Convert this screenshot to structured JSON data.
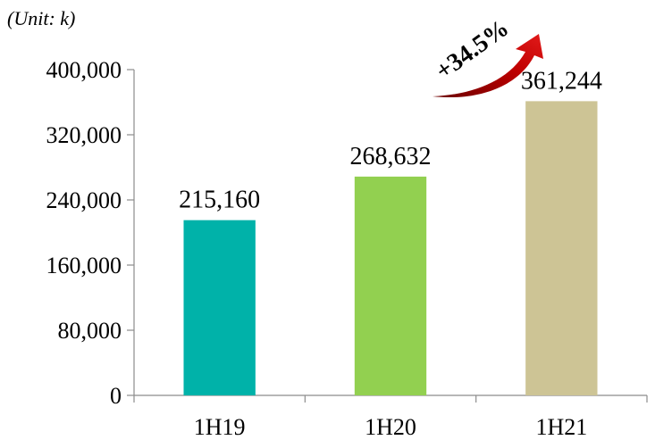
{
  "chart_data": {
    "type": "bar",
    "unit_label": "(Unit: k)",
    "categories": [
      "1H19",
      "1H20",
      "1H21"
    ],
    "values": [
      215160,
      268632,
      361244
    ],
    "value_labels": [
      "215,160",
      "268,632",
      "361,244"
    ],
    "bar_colors": [
      "#00b2a9",
      "#92d050",
      "#cdc495"
    ],
    "ylim": [
      0,
      400000
    ],
    "y_ticks": [
      0,
      80000,
      160000,
      240000,
      320000,
      400000
    ],
    "y_tick_labels": [
      "0",
      "80,000",
      "160,000",
      "240,000",
      "320,000",
      "400,000"
    ],
    "grid": false,
    "annotation": {
      "text": "+34.5%",
      "arrow_color": "#c00000"
    }
  }
}
